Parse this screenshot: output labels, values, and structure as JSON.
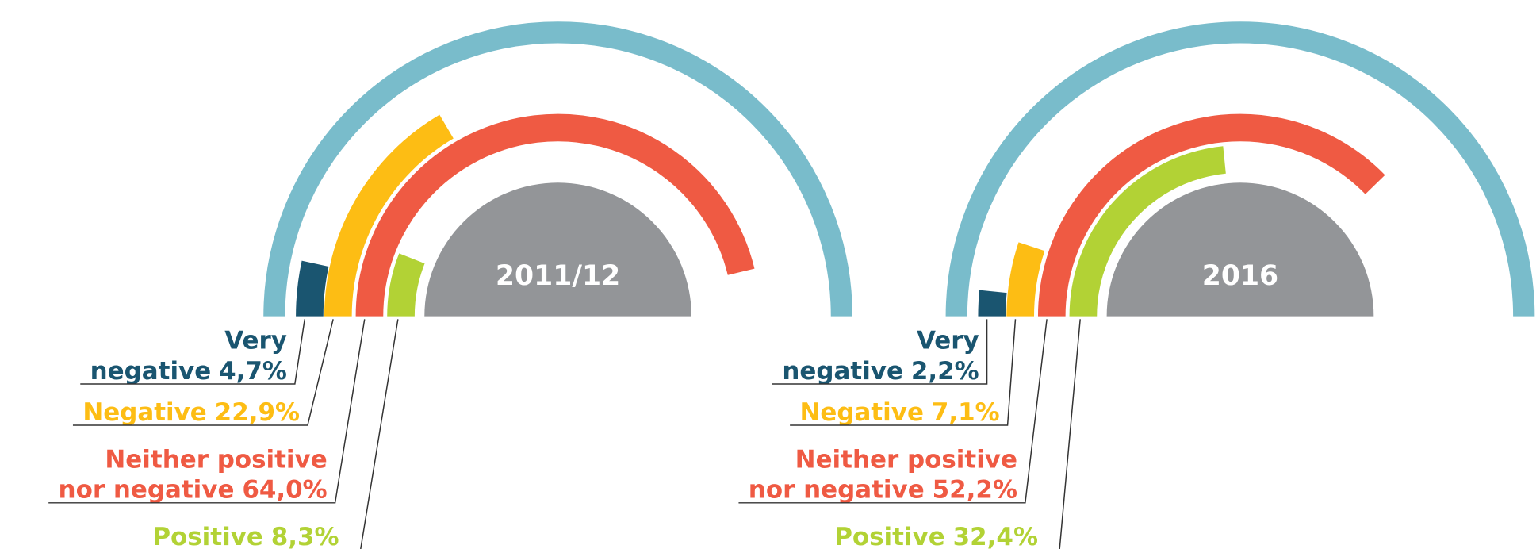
{
  "chart_data": [
    {
      "type": "radial_bar",
      "title": "2011/12",
      "categories": [
        "Very negative",
        "Negative",
        "Neither positive nor negative",
        "Positive"
      ],
      "values": [
        4.7,
        22.9,
        64.0,
        8.3
      ],
      "value_labels": [
        "4,7%",
        "22,9%",
        "64,0%",
        "8,3%"
      ],
      "colors": [
        "#1a5570",
        "#fdbd14",
        "#ef5a43",
        "#b2d235"
      ]
    },
    {
      "type": "radial_bar",
      "title": "2016",
      "categories": [
        "Very negative",
        "Negative",
        "Neither positive nor negative",
        "Positive"
      ],
      "values": [
        2.2,
        7.1,
        52.2,
        32.4
      ],
      "value_labels": [
        "2,2%",
        "7,1%",
        "52,2%",
        "32,4%"
      ],
      "colors": [
        "#1a5570",
        "#fdbd14",
        "#ef5a43",
        "#b2d235"
      ]
    }
  ]
}
